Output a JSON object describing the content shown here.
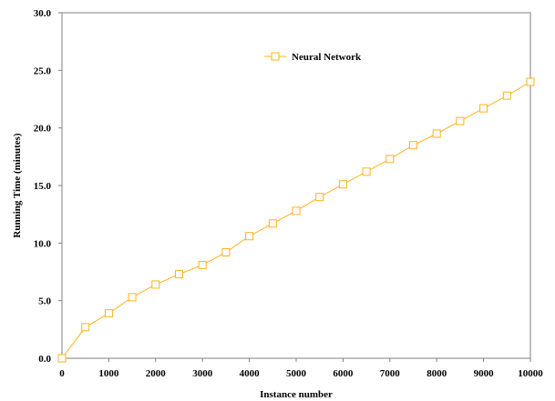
{
  "chart_data": {
    "type": "line",
    "title": "",
    "xlabel": "Instance number",
    "ylabel": "Running Time (minutes)",
    "xlim": [
      0,
      10000
    ],
    "ylim": [
      0,
      30
    ],
    "x_ticks": [
      0,
      1000,
      2000,
      3000,
      4000,
      5000,
      6000,
      7000,
      8000,
      9000,
      10000
    ],
    "x_tick_labels": [
      "0",
      "1000",
      "2000",
      "3000",
      "4000",
      "5000",
      "6000",
      "7000",
      "8000",
      "9000",
      "10000"
    ],
    "y_ticks": [
      0,
      5,
      10,
      15,
      20,
      25,
      30
    ],
    "y_tick_labels": [
      "0.0",
      "5.0",
      "10.0",
      "15.0",
      "20.0",
      "25.0",
      "30.0"
    ],
    "grid": false,
    "legend_position": "top-center",
    "series": [
      {
        "name": "Neural Network",
        "color": "#FFB31A",
        "marker": "square",
        "x": [
          0,
          500,
          1000,
          1500,
          2000,
          2500,
          3000,
          3500,
          4000,
          4500,
          5000,
          5500,
          6000,
          6500,
          7000,
          7500,
          8000,
          8500,
          9000,
          9500,
          10000
        ],
        "y": [
          0.0,
          2.7,
          3.9,
          5.3,
          6.4,
          7.3,
          8.1,
          9.2,
          10.6,
          11.7,
          12.8,
          14.0,
          15.1,
          16.2,
          17.3,
          18.5,
          19.5,
          20.6,
          21.7,
          22.8,
          24.0
        ]
      }
    ]
  }
}
